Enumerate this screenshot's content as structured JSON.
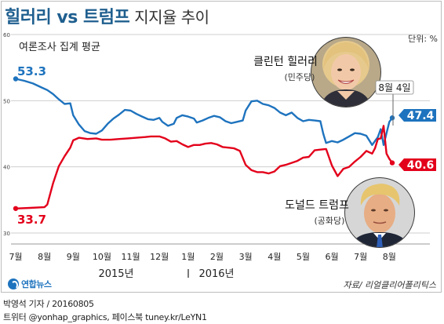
{
  "header": {
    "title_main": "힐러리 vs 트럼프",
    "title_sub": "지지율 추이"
  },
  "subtitle": "여론조사 집계 평균",
  "unit": "단위: %",
  "source": "자료/ 리얼클리어폴리틱스",
  "logo_text": "연합뉴스",
  "footer": {
    "line1": "박영석 기자 / 20160805",
    "line2": "트위터 @yonhap_graphics, 페이스북 tuney.kr/LeYN1"
  },
  "candidates": {
    "clinton": {
      "name": "클린턴 힐러리",
      "party": "(민주당)"
    },
    "trump": {
      "name": "도널드 트럼프",
      "party": "(공화당)"
    }
  },
  "colors": {
    "clinton": "#1e73be",
    "trump": "#e3001b",
    "title": "#1f5f8f",
    "grid": "#cfcfcf"
  },
  "chart_data": {
    "type": "line",
    "title": "",
    "xlabel": "",
    "ylabel": "",
    "ylim": [
      30,
      60
    ],
    "xlim": [
      0,
      13.1
    ],
    "grid": true,
    "y_ticks": [
      30,
      40,
      50,
      60
    ],
    "x_tick_labels": [
      "7월",
      "8월",
      "9월",
      "10월",
      "11월",
      "12월",
      "1월",
      "2월",
      "3월",
      "4월",
      "5월",
      "6월",
      "7월",
      "8월"
    ],
    "year_labels": [
      "2015년",
      "2016년"
    ],
    "annotation_date": "8월 4일",
    "start_labels": {
      "clinton": "53.3",
      "trump": "33.7"
    },
    "end_labels": {
      "clinton": "47.4",
      "trump": "40.6"
    },
    "series": [
      {
        "name": "클린턴 힐러리",
        "color": "#1e73be",
        "points": [
          [
            0.0,
            53.3
          ],
          [
            0.3,
            53.0
          ],
          [
            0.6,
            52.6
          ],
          [
            0.9,
            52.0
          ],
          [
            1.1,
            51.6
          ],
          [
            1.3,
            51.0
          ],
          [
            1.5,
            50.2
          ],
          [
            1.7,
            49.5
          ],
          [
            1.9,
            49.6
          ],
          [
            2.0,
            47.8
          ],
          [
            2.2,
            46.4
          ],
          [
            2.4,
            45.4
          ],
          [
            2.6,
            45.1
          ],
          [
            2.8,
            45.0
          ],
          [
            3.0,
            45.5
          ],
          [
            3.2,
            46.5
          ],
          [
            3.4,
            47.3
          ],
          [
            3.6,
            47.9
          ],
          [
            3.8,
            48.6
          ],
          [
            4.0,
            48.5
          ],
          [
            4.2,
            48.0
          ],
          [
            4.4,
            47.6
          ],
          [
            4.6,
            47.2
          ],
          [
            4.8,
            47.1
          ],
          [
            5.0,
            47.4
          ],
          [
            5.1,
            46.8
          ],
          [
            5.3,
            46.2
          ],
          [
            5.5,
            46.5
          ],
          [
            5.6,
            47.4
          ],
          [
            5.8,
            47.8
          ],
          [
            6.0,
            47.6
          ],
          [
            6.2,
            47.3
          ],
          [
            6.3,
            46.7
          ],
          [
            6.5,
            47.0
          ],
          [
            6.7,
            47.4
          ],
          [
            6.9,
            47.7
          ],
          [
            7.1,
            47.5
          ],
          [
            7.3,
            46.9
          ],
          [
            7.5,
            46.6
          ],
          [
            7.7,
            46.8
          ],
          [
            7.9,
            47.0
          ],
          [
            8.0,
            48.5
          ],
          [
            8.2,
            49.9
          ],
          [
            8.4,
            50.0
          ],
          [
            8.6,
            49.5
          ],
          [
            8.8,
            49.3
          ],
          [
            9.0,
            48.9
          ],
          [
            9.2,
            48.2
          ],
          [
            9.4,
            47.8
          ],
          [
            9.6,
            48.2
          ],
          [
            9.8,
            47.4
          ],
          [
            10.0,
            46.9
          ],
          [
            10.2,
            47.1
          ],
          [
            10.4,
            47.0
          ],
          [
            10.6,
            46.9
          ],
          [
            10.7,
            45.0
          ],
          [
            10.8,
            43.6
          ],
          [
            11.0,
            43.9
          ],
          [
            11.2,
            43.7
          ],
          [
            11.4,
            44.1
          ],
          [
            11.6,
            44.6
          ],
          [
            11.8,
            45.1
          ],
          [
            12.0,
            45.0
          ],
          [
            12.2,
            44.7
          ],
          [
            12.4,
            43.3
          ],
          [
            12.6,
            44.5
          ],
          [
            12.7,
            45.7
          ],
          [
            12.8,
            43.3
          ],
          [
            13.0,
            46.8
          ],
          [
            13.1,
            47.4
          ]
        ]
      },
      {
        "name": "도널드 트럼프",
        "color": "#e3001b",
        "points": [
          [
            0.0,
            33.7
          ],
          [
            0.5,
            33.8
          ],
          [
            1.0,
            33.9
          ],
          [
            1.1,
            34.3
          ],
          [
            1.3,
            37.5
          ],
          [
            1.5,
            40.1
          ],
          [
            1.7,
            41.6
          ],
          [
            1.9,
            42.9
          ],
          [
            2.0,
            44.0
          ],
          [
            2.2,
            44.4
          ],
          [
            2.5,
            44.2
          ],
          [
            2.8,
            44.3
          ],
          [
            3.0,
            44.1
          ],
          [
            3.3,
            44.1
          ],
          [
            3.6,
            44.2
          ],
          [
            3.9,
            44.3
          ],
          [
            4.2,
            44.4
          ],
          [
            4.5,
            44.5
          ],
          [
            4.7,
            44.6
          ],
          [
            5.0,
            44.6
          ],
          [
            5.2,
            44.3
          ],
          [
            5.4,
            43.8
          ],
          [
            5.6,
            43.9
          ],
          [
            5.8,
            43.4
          ],
          [
            6.0,
            43.0
          ],
          [
            6.2,
            43.3
          ],
          [
            6.4,
            43.3
          ],
          [
            6.6,
            43.5
          ],
          [
            6.8,
            43.6
          ],
          [
            7.0,
            43.4
          ],
          [
            7.2,
            43.0
          ],
          [
            7.4,
            42.9
          ],
          [
            7.6,
            42.8
          ],
          [
            7.8,
            42.4
          ],
          [
            8.0,
            40.3
          ],
          [
            8.2,
            39.5
          ],
          [
            8.4,
            39.2
          ],
          [
            8.6,
            39.2
          ],
          [
            8.8,
            39.0
          ],
          [
            9.0,
            39.3
          ],
          [
            9.2,
            40.1
          ],
          [
            9.4,
            40.3
          ],
          [
            9.6,
            40.6
          ],
          [
            9.8,
            40.9
          ],
          [
            10.0,
            41.4
          ],
          [
            10.2,
            41.5
          ],
          [
            10.4,
            42.5
          ],
          [
            10.6,
            42.6
          ],
          [
            10.8,
            42.7
          ],
          [
            11.0,
            40.2
          ],
          [
            11.2,
            38.6
          ],
          [
            11.4,
            39.7
          ],
          [
            11.6,
            40.0
          ],
          [
            11.8,
            40.8
          ],
          [
            12.0,
            41.5
          ],
          [
            12.2,
            42.4
          ],
          [
            12.4,
            42.0
          ],
          [
            12.5,
            42.8
          ],
          [
            12.6,
            44.2
          ],
          [
            12.7,
            44.3
          ],
          [
            12.8,
            46.2
          ],
          [
            12.9,
            42.0
          ],
          [
            13.0,
            41.2
          ],
          [
            13.1,
            40.6
          ]
        ]
      }
    ]
  }
}
